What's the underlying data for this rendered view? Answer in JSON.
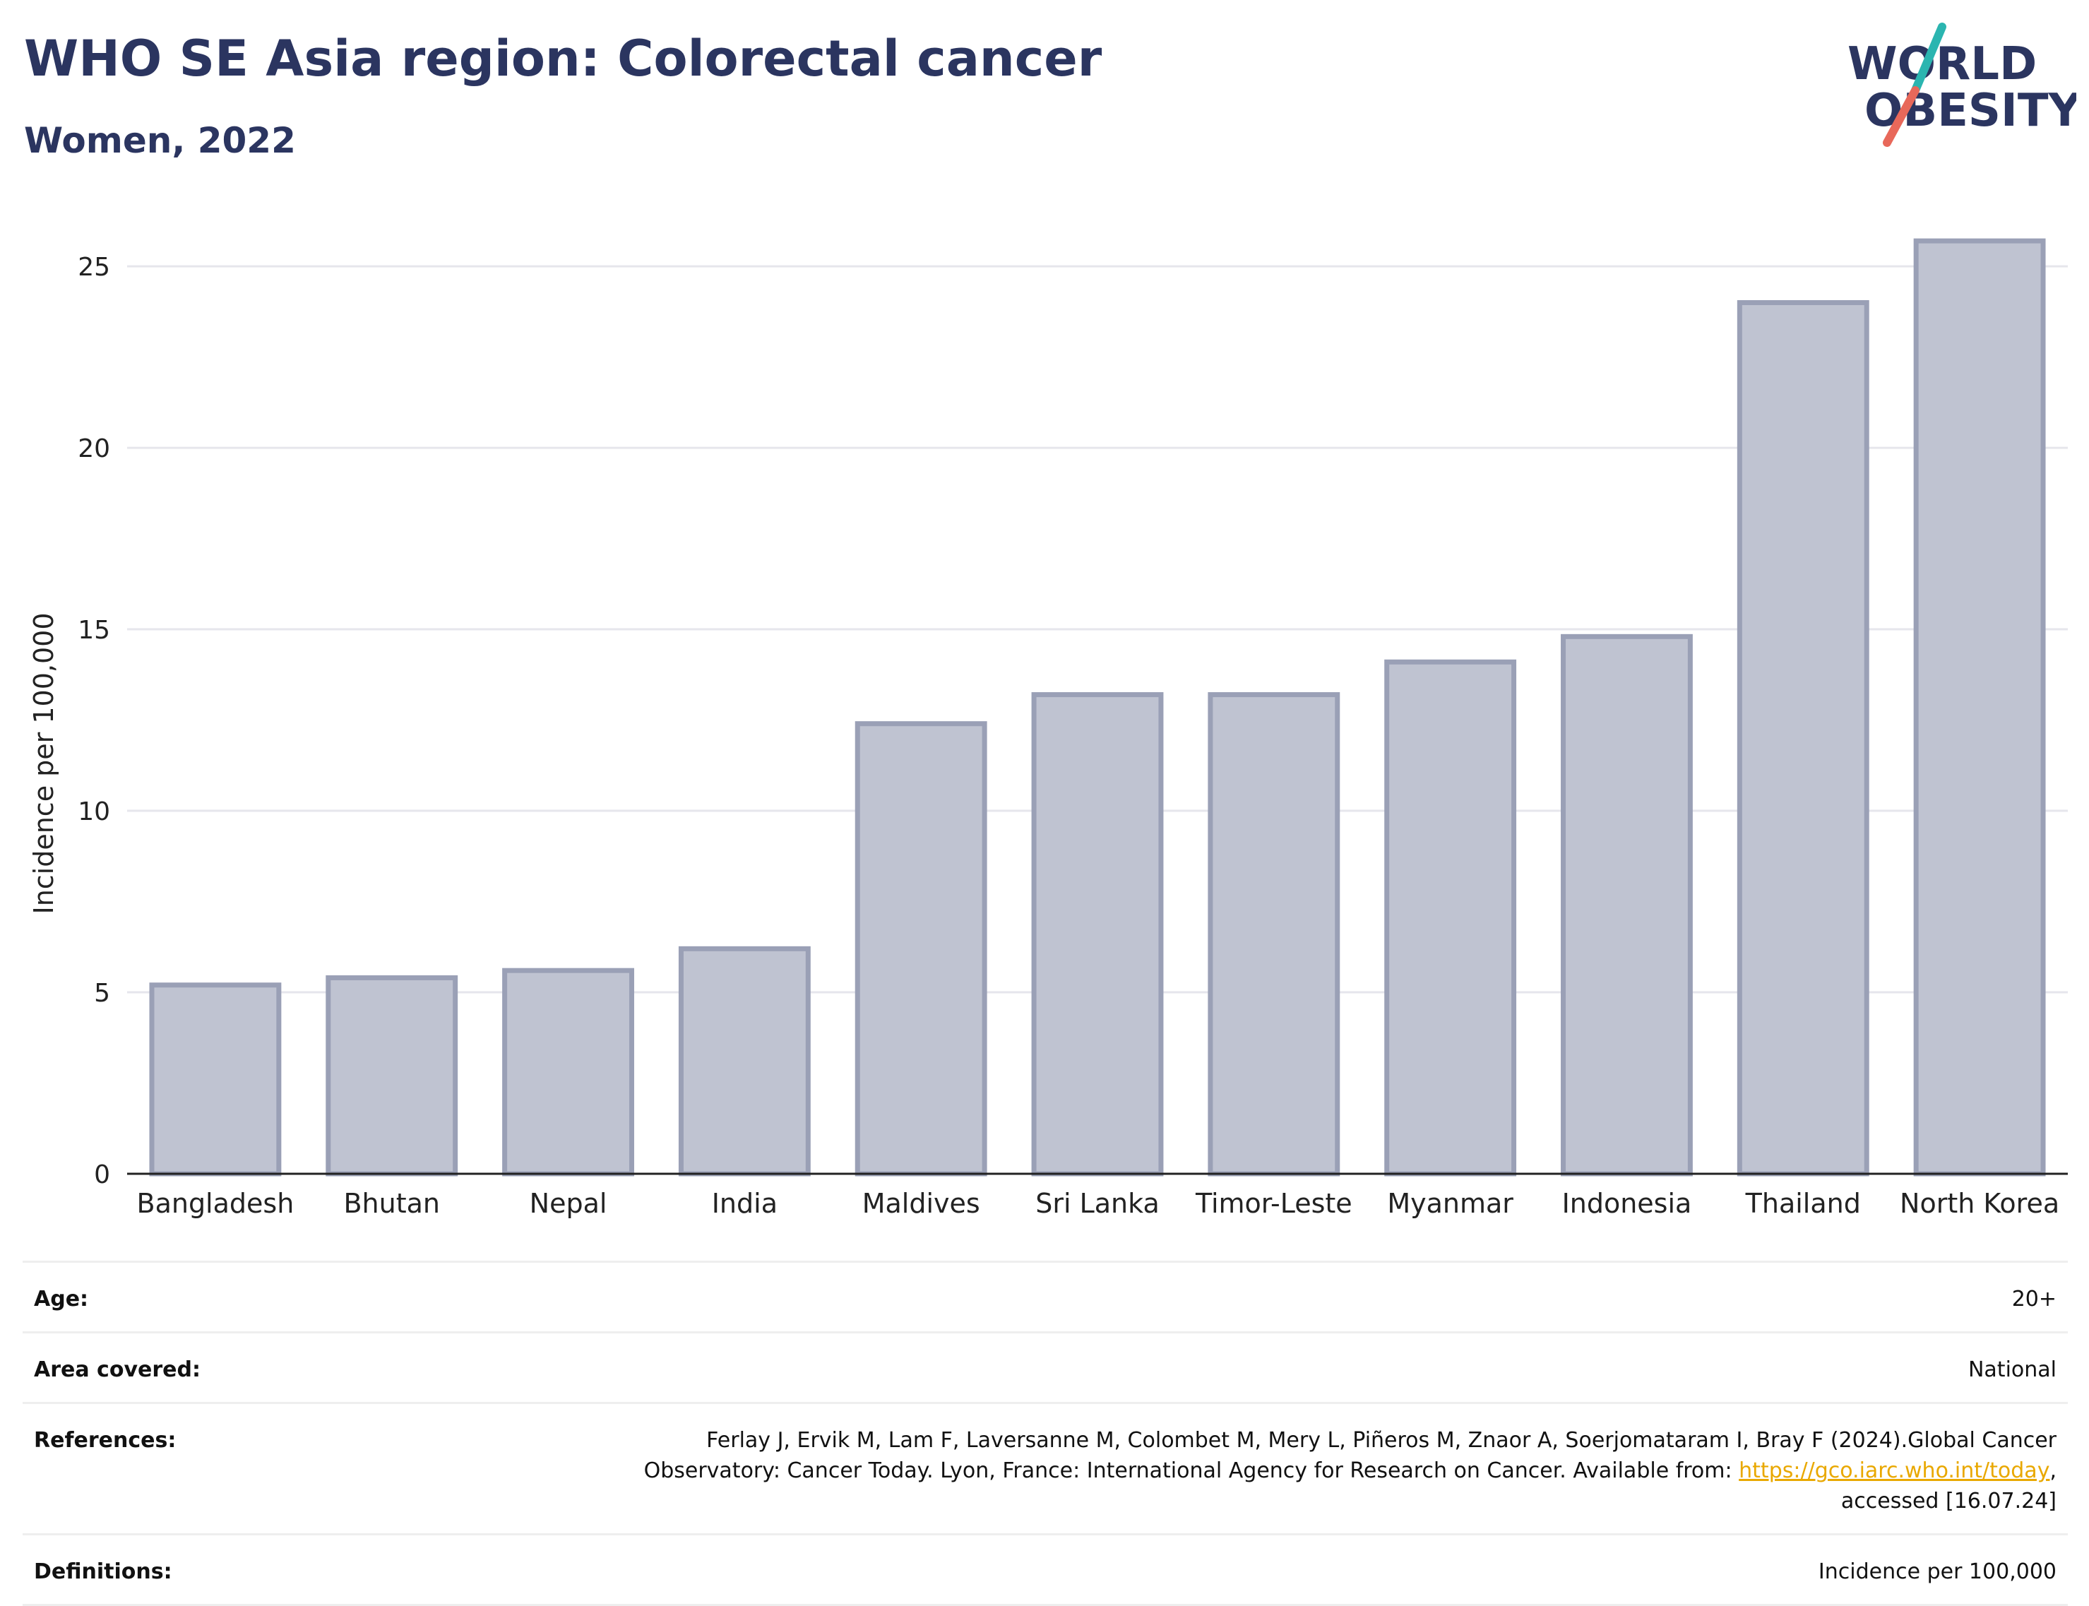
{
  "header": {
    "title": "WHO SE Asia region: Colorectal cancer",
    "subtitle": "Women, 2022",
    "logo_text_line1": "WORLD",
    "logo_text_line2": "OBESITY"
  },
  "colors": {
    "title": "#2b3560",
    "bar_fill": "#bfc3d1",
    "bar_stroke": "#9aa0b6",
    "grid": "#e6e6ec",
    "logo_teal": "#2bb5b0",
    "logo_coral": "#e8685a",
    "link": "#e9a800"
  },
  "chart_data": {
    "type": "bar",
    "ylabel": "Incidence per 100,000",
    "xlabel": "",
    "categories": [
      "Bangladesh",
      "Bhutan",
      "Nepal",
      "India",
      "Maldives",
      "Sri Lanka",
      "Timor-Leste",
      "Myanmar",
      "Indonesia",
      "Thailand",
      "North Korea"
    ],
    "values": [
      5.2,
      5.4,
      5.6,
      6.2,
      12.4,
      13.2,
      13.2,
      14.1,
      14.8,
      24.0,
      25.7
    ],
    "yticks": [
      0,
      5,
      10,
      15,
      20,
      25
    ],
    "ylim": [
      0,
      26.5
    ],
    "grid": true,
    "legend": "none"
  },
  "meta": {
    "age_label": "Age:",
    "age_value": "20+",
    "area_label": "Area covered:",
    "area_value": "National",
    "references_label": "References:",
    "references_line1": "Ferlay J, Ervik M, Lam F, Laversanne M, Colombet M, Mery L, Piñeros M, Znaor A, Soerjomataram I, Bray F (2024).Global Cancer",
    "references_line2_pre": "Observatory: Cancer Today. Lyon, France: International Agency for Research on Cancer. Available from: ",
    "references_link": "https://gco.iarc.who.int/today",
    "references_line2_post": ",",
    "references_line3": "accessed [16.07.24]",
    "definitions_label": "Definitions:",
    "definitions_value": "Incidence per 100,000"
  }
}
